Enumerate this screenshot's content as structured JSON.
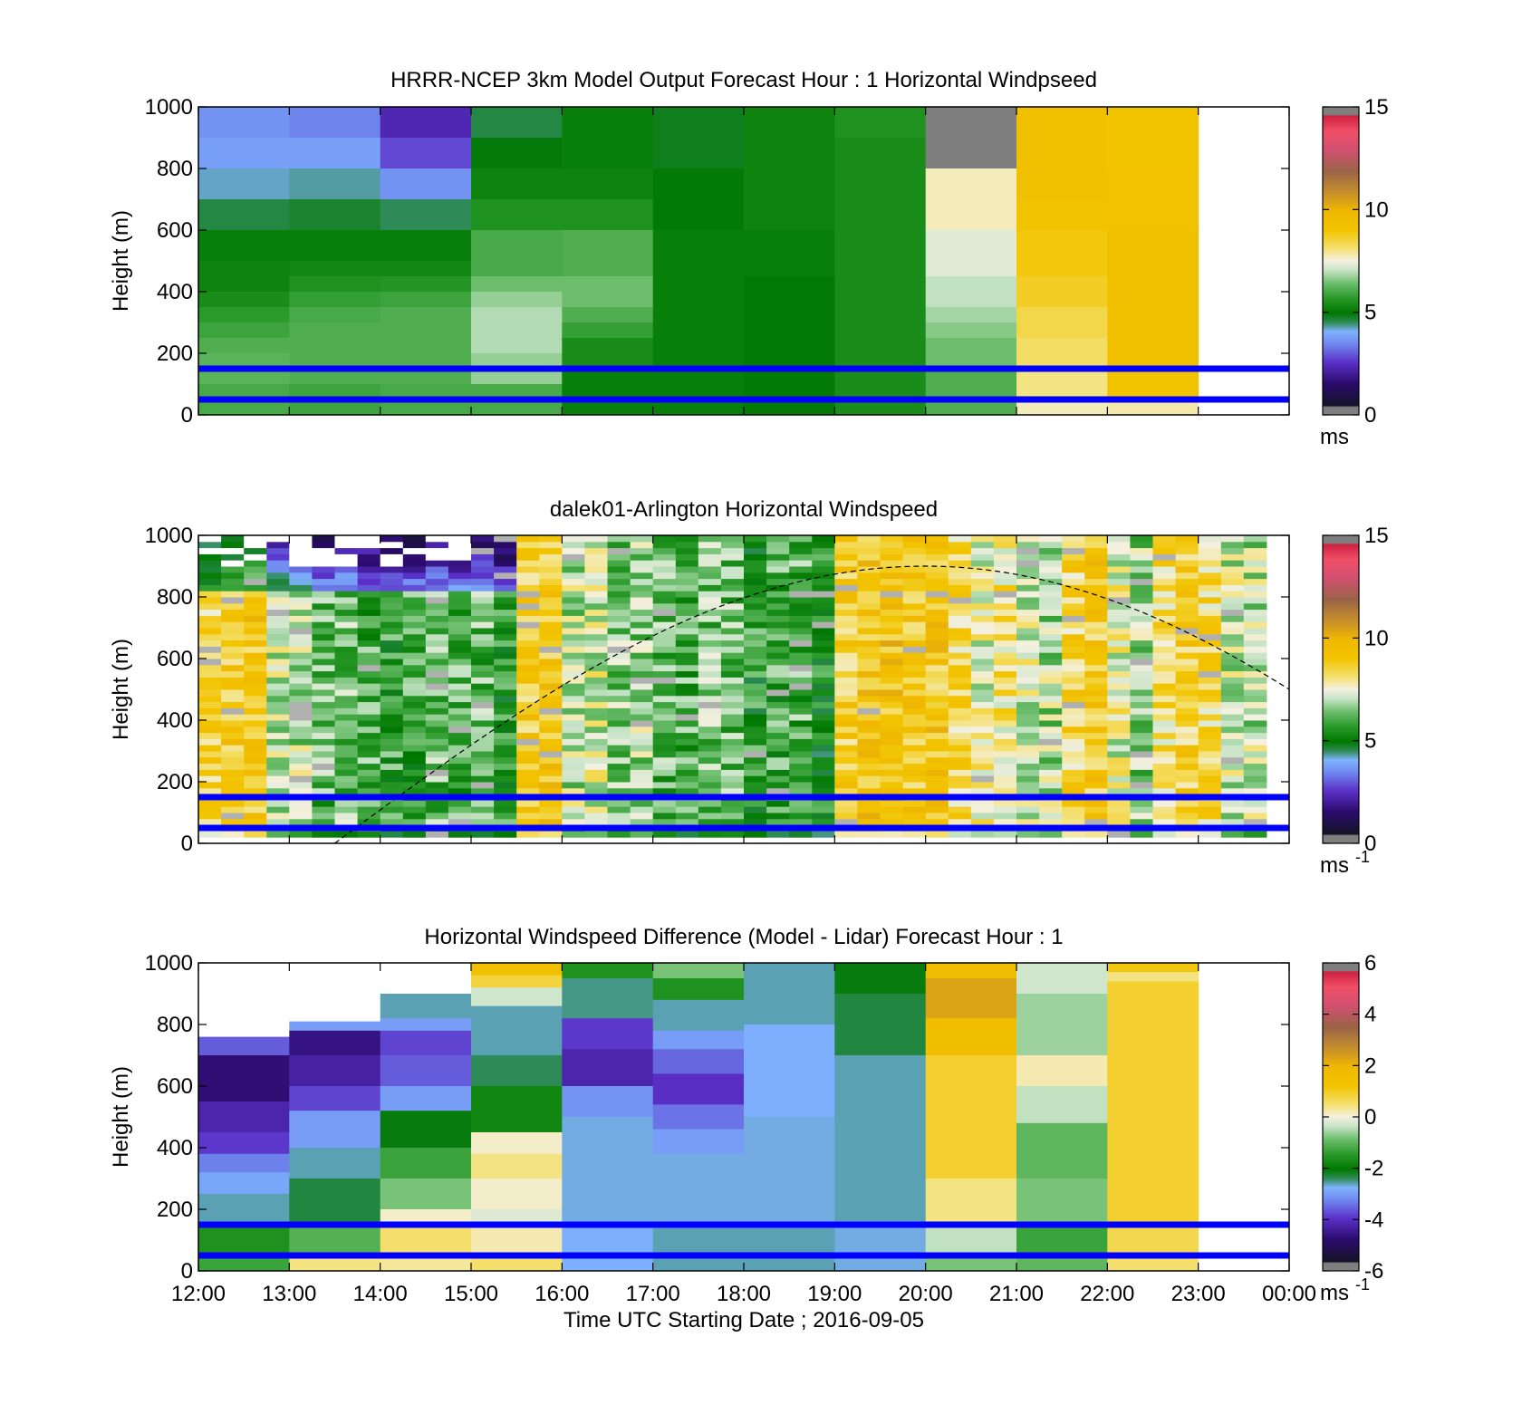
{
  "chart_data": [
    {
      "type": "heatmap",
      "title": "HRRR-NCEP 3km Model Output   Forecast Hour : 1 Horizontal Windpseed",
      "ylabel": "Height (m)",
      "xlim": [
        12,
        24
      ],
      "ylim": [
        0,
        1000
      ],
      "yticks": [
        "0",
        "200",
        "400",
        "600",
        "800",
        "1000"
      ],
      "colorbar": {
        "ticks": [
          "0",
          "5",
          "10",
          "15"
        ],
        "range": [
          0,
          15
        ],
        "units": "ms",
        "units_sup": ""
      },
      "reference_lines": [
        50,
        150
      ],
      "columns": [
        {
          "x0": 12,
          "x1": 13,
          "bands": [
            {
              "y1": 1000,
              "v": 3.6
            },
            {
              "y1": 900,
              "v": 3.8
            },
            {
              "y1": 800,
              "v": 4.2
            },
            {
              "y1": 700,
              "v": 4.6
            },
            {
              "y1": 600,
              "v": 5.1
            },
            {
              "y1": 500,
              "v": 5.2
            },
            {
              "y1": 400,
              "v": 5.4
            },
            {
              "y1": 350,
              "v": 5.7
            },
            {
              "y1": 300,
              "v": 5.9
            },
            {
              "y1": 250,
              "v": 6.1
            },
            {
              "y1": 200,
              "v": 6.2
            },
            {
              "y1": 100,
              "v": 6.0
            }
          ]
        },
        {
          "x0": 13,
          "x1": 14,
          "bands": [
            {
              "y1": 1000,
              "v": 3.4
            },
            {
              "y1": 900,
              "v": 3.8
            },
            {
              "y1": 800,
              "v": 4.3
            },
            {
              "y1": 700,
              "v": 4.7
            },
            {
              "y1": 600,
              "v": 5.1
            },
            {
              "y1": 500,
              "v": 5.3
            },
            {
              "y1": 450,
              "v": 5.5
            },
            {
              "y1": 400,
              "v": 5.8
            },
            {
              "y1": 350,
              "v": 6.0
            },
            {
              "y1": 300,
              "v": 6.1
            },
            {
              "y1": 100,
              "v": 5.9
            }
          ]
        },
        {
          "x0": 14,
          "x1": 15,
          "bands": [
            {
              "y1": 1000,
              "v": 2.3
            },
            {
              "y1": 900,
              "v": 2.8
            },
            {
              "y1": 800,
              "v": 3.6
            },
            {
              "y1": 700,
              "v": 4.5
            },
            {
              "y1": 600,
              "v": 5.1
            },
            {
              "y1": 500,
              "v": 5.3
            },
            {
              "y1": 450,
              "v": 5.6
            },
            {
              "y1": 400,
              "v": 5.9
            },
            {
              "y1": 350,
              "v": 6.1
            },
            {
              "y1": 100,
              "v": 6.0
            }
          ]
        },
        {
          "x0": 15,
          "x1": 16,
          "bands": [
            {
              "y1": 1000,
              "v": 4.6
            },
            {
              "y1": 900,
              "v": 4.9
            },
            {
              "y1": 800,
              "v": 5.2
            },
            {
              "y1": 700,
              "v": 5.5
            },
            {
              "y1": 600,
              "v": 6.0
            },
            {
              "y1": 450,
              "v": 6.4
            },
            {
              "y1": 400,
              "v": 6.7
            },
            {
              "y1": 350,
              "v": 6.9
            },
            {
              "y1": 200,
              "v": 6.7
            },
            {
              "y1": 100,
              "v": 6.0
            }
          ]
        },
        {
          "x0": 16,
          "x1": 17,
          "bands": [
            {
              "y1": 1000,
              "v": 5.1
            },
            {
              "y1": 800,
              "v": 5.2
            },
            {
              "y1": 700,
              "v": 5.5
            },
            {
              "y1": 600,
              "v": 6.1
            },
            {
              "y1": 450,
              "v": 6.4
            },
            {
              "y1": 350,
              "v": 6.1
            },
            {
              "y1": 300,
              "v": 5.8
            },
            {
              "y1": 250,
              "v": 5.4
            },
            {
              "y1": 150,
              "v": 5.1
            }
          ]
        },
        {
          "x0": 17,
          "x1": 18,
          "bands": [
            {
              "y1": 1000,
              "v": 4.8
            },
            {
              "y1": 800,
              "v": 5.0
            },
            {
              "y1": 600,
              "v": 5.1
            }
          ]
        },
        {
          "x0": 18,
          "x1": 19,
          "bands": [
            {
              "y1": 1000,
              "v": 5.2
            },
            {
              "y1": 600,
              "v": 5.1
            },
            {
              "y1": 450,
              "v": 5.0
            }
          ]
        },
        {
          "x0": 19,
          "x1": 20,
          "bands": [
            {
              "y1": 1000,
              "v": 5.5
            },
            {
              "y1": 900,
              "v": 5.4
            }
          ]
        },
        {
          "x0": 20,
          "x1": 21,
          "bands": [
            {
              "y1": 1000,
              "v": 15.5
            },
            {
              "y1": 800,
              "v": 7.7
            },
            {
              "y1": 600,
              "v": 7.3
            },
            {
              "y1": 450,
              "v": 7.0
            },
            {
              "y1": 350,
              "v": 6.8
            },
            {
              "y1": 300,
              "v": 6.6
            },
            {
              "y1": 250,
              "v": 6.4
            },
            {
              "y1": 150,
              "v": 6.1
            }
          ]
        },
        {
          "x0": 21,
          "x1": 22,
          "bands": [
            {
              "y1": 1000,
              "v": 9.3
            },
            {
              "y1": 700,
              "v": 9.1
            },
            {
              "y1": 600,
              "v": 8.9
            },
            {
              "y1": 450,
              "v": 8.7
            },
            {
              "y1": 350,
              "v": 8.4
            },
            {
              "y1": 250,
              "v": 8.2
            },
            {
              "y1": 150,
              "v": 8.0
            },
            {
              "y1": 50,
              "v": 7.7
            }
          ]
        },
        {
          "x0": 22,
          "x1": 23,
          "bands": [
            {
              "y1": 1000,
              "v": 9.0
            },
            {
              "y1": 800,
              "v": 9.2
            },
            {
              "y1": 600,
              "v": 9.3
            },
            {
              "y1": 150,
              "v": 9.0
            },
            {
              "y1": 50,
              "v": 7.8
            }
          ]
        }
      ]
    },
    {
      "type": "heatmap",
      "title": "dalek01-Arlington  Horizontal Windspeed",
      "ylabel": "Height (m)",
      "xlim": [
        12,
        24
      ],
      "ylim": [
        0,
        1000
      ],
      "yticks": [
        "0",
        "200",
        "400",
        "600",
        "800",
        "1000"
      ],
      "colorbar": {
        "ticks": [
          "0",
          "5",
          "10",
          "15"
        ],
        "range": [
          0,
          15
        ],
        "units": "ms",
        "units_sup": "-1"
      },
      "reference_lines": [
        50,
        150
      ],
      "time_step_hours": 0.25,
      "bin_height_m": 20,
      "profile_speed": [
        8.5,
        8.8,
        9.0,
        7.2,
        7.0,
        6.2,
        6.5,
        6.0,
        5.8,
        5.9,
        6.3,
        6.0,
        6.2,
        5.7,
        8.8,
        9.0,
        7.0,
        7.3,
        6.5,
        6.8,
        6.2,
        6.0,
        6.4,
        6.3,
        5.6,
        5.9,
        6.1,
        5.3,
        8.8,
        9.1,
        9.2,
        8.9,
        9.0,
        8.3,
        7.5,
        8.0,
        7.3,
        6.9,
        8.5,
        8.9,
        7.5,
        6.7,
        8.2,
        8.7,
        8.3,
        7.2,
        7.0
      ],
      "sun_curve": {
        "x_start": 13.5,
        "x_peak": 20.0,
        "y_peak": 900,
        "x_end": 24.0,
        "y_end": 500
      }
    },
    {
      "type": "heatmap",
      "title": "Horizontal Windspeed Difference (Model - Lidar) Forecast Hour : 1",
      "ylabel": "Height (m)",
      "xlabel": "Time UTC  Starting Date ; 2016-09-05",
      "xlim": [
        12,
        24
      ],
      "ylim": [
        0,
        1000
      ],
      "xticks": [
        "12:00",
        "13:00",
        "14:00",
        "15:00",
        "16:00",
        "17:00",
        "18:00",
        "19:00",
        "20:00",
        "21:00",
        "22:00",
        "23:00",
        "00:00"
      ],
      "yticks": [
        "0",
        "200",
        "400",
        "600",
        "800",
        "1000"
      ],
      "colorbar": {
        "ticks": [
          "-6",
          "-4",
          "-2",
          "0",
          "2",
          "4",
          "6"
        ],
        "range": [
          -6,
          6
        ],
        "units": "ms",
        "units_sup": "-1"
      },
      "reference_lines": [
        50,
        150
      ],
      "columns": [
        {
          "x0": 12,
          "x1": 13,
          "top": 760,
          "bands": [
            {
              "y1": 760,
              "v": -3.6
            },
            {
              "y1": 700,
              "v": -4.7
            },
            {
              "y1": 550,
              "v": -4.2
            },
            {
              "y1": 450,
              "v": -3.9
            },
            {
              "y1": 380,
              "v": -3.3
            },
            {
              "y1": 320,
              "v": -2.9
            },
            {
              "y1": 250,
              "v": -2.6
            },
            {
              "y1": 150,
              "v": -1.6
            },
            {
              "y1": 60,
              "v": -1.3
            }
          ]
        },
        {
          "x0": 13,
          "x1": 14,
          "top": 810,
          "bands": [
            {
              "y1": 810,
              "v": -3.0
            },
            {
              "y1": 780,
              "v": -4.6
            },
            {
              "y1": 700,
              "v": -4.3
            },
            {
              "y1": 600,
              "v": -3.8
            },
            {
              "y1": 520,
              "v": -3.0
            },
            {
              "y1": 400,
              "v": -2.6
            },
            {
              "y1": 300,
              "v": -2.3
            },
            {
              "y1": 150,
              "v": -1.1
            },
            {
              "y1": 60,
              "v": 0.4
            }
          ]
        },
        {
          "x0": 14,
          "x1": 15,
          "top": 900,
          "bands": [
            {
              "y1": 900,
              "v": -2.6
            },
            {
              "y1": 820,
              "v": -3.0
            },
            {
              "y1": 780,
              "v": -3.8
            },
            {
              "y1": 700,
              "v": -3.6
            },
            {
              "y1": 600,
              "v": -3.0
            },
            {
              "y1": 520,
              "v": -2.1
            },
            {
              "y1": 400,
              "v": -1.3
            },
            {
              "y1": 300,
              "v": -0.8
            },
            {
              "y1": 200,
              "v": 0.1
            },
            {
              "y1": 150,
              "v": 0.5
            },
            {
              "y1": 60,
              "v": 0.3
            }
          ]
        },
        {
          "x0": 15,
          "x1": 16,
          "top": 1000,
          "bands": [
            {
              "y1": 1000,
              "v": 1.4
            },
            {
              "y1": 960,
              "v": 0.8
            },
            {
              "y1": 920,
              "v": -0.3
            },
            {
              "y1": 860,
              "v": -2.6
            },
            {
              "y1": 700,
              "v": -2.4
            },
            {
              "y1": 600,
              "v": -1.8
            },
            {
              "y1": 450,
              "v": 0.1
            },
            {
              "y1": 380,
              "v": 0.4
            },
            {
              "y1": 300,
              "v": 0.1
            },
            {
              "y1": 200,
              "v": -0.2
            },
            {
              "y1": 150,
              "v": 0.2
            },
            {
              "y1": 60,
              "v": 0.5
            }
          ]
        },
        {
          "x0": 16,
          "x1": 17,
          "top": 1000,
          "bands": [
            {
              "y1": 1000,
              "v": -1.6
            },
            {
              "y1": 950,
              "v": -2.5
            },
            {
              "y1": 820,
              "v": -3.9
            },
            {
              "y1": 720,
              "v": -4.2
            },
            {
              "y1": 600,
              "v": -3.1
            },
            {
              "y1": 500,
              "v": -2.7
            },
            {
              "y1": 150,
              "v": -2.8
            }
          ]
        },
        {
          "x0": 17,
          "x1": 18,
          "top": 1000,
          "bands": [
            {
              "y1": 1000,
              "v": -0.8
            },
            {
              "y1": 950,
              "v": -1.6
            },
            {
              "y1": 880,
              "v": -2.6
            },
            {
              "y1": 780,
              "v": -3.0
            },
            {
              "y1": 720,
              "v": -3.5
            },
            {
              "y1": 640,
              "v": -4.0
            },
            {
              "y1": 540,
              "v": -3.4
            },
            {
              "y1": 460,
              "v": -3.0
            },
            {
              "y1": 380,
              "v": -2.7
            },
            {
              "y1": 150,
              "v": -2.6
            }
          ]
        },
        {
          "x0": 18,
          "x1": 19,
          "top": 1000,
          "bands": [
            {
              "y1": 1000,
              "v": -2.6
            },
            {
              "y1": 800,
              "v": -2.8
            },
            {
              "y1": 500,
              "v": -2.7
            },
            {
              "y1": 150,
              "v": -2.6
            }
          ]
        },
        {
          "x0": 19,
          "x1": 20,
          "top": 1000,
          "bands": [
            {
              "y1": 1000,
              "v": -2.1
            },
            {
              "y1": 900,
              "v": -2.3
            },
            {
              "y1": 700,
              "v": -2.6
            },
            {
              "y1": 150,
              "v": -2.7
            }
          ]
        },
        {
          "x0": 20,
          "x1": 21,
          "top": 1000,
          "bands": [
            {
              "y1": 1000,
              "v": 1.6
            },
            {
              "y1": 950,
              "v": 2.3
            },
            {
              "y1": 820,
              "v": 1.5
            },
            {
              "y1": 700,
              "v": 0.9
            },
            {
              "y1": 550,
              "v": 0.9
            },
            {
              "y1": 300,
              "v": 0.4
            },
            {
              "y1": 150,
              "v": -0.4
            },
            {
              "y1": 60,
              "v": -0.8
            }
          ]
        },
        {
          "x0": 21,
          "x1": 22,
          "top": 1000,
          "bands": [
            {
              "y1": 1000,
              "v": -0.3
            },
            {
              "y1": 900,
              "v": -0.6
            },
            {
              "y1": 700,
              "v": 0.2
            },
            {
              "y1": 600,
              "v": -0.4
            },
            {
              "y1": 480,
              "v": -1.0
            },
            {
              "y1": 300,
              "v": -0.8
            },
            {
              "y1": 150,
              "v": -1.3
            },
            {
              "y1": 60,
              "v": -1.0
            }
          ]
        },
        {
          "x0": 22,
          "x1": 23,
          "top": 1000,
          "bands": [
            {
              "y1": 1000,
              "v": 1.1
            },
            {
              "y1": 970,
              "v": 0.4
            },
            {
              "y1": 940,
              "v": 0.9
            },
            {
              "y1": 150,
              "v": 0.7
            },
            {
              "y1": 60,
              "v": 0.5
            }
          ]
        }
      ]
    }
  ]
}
